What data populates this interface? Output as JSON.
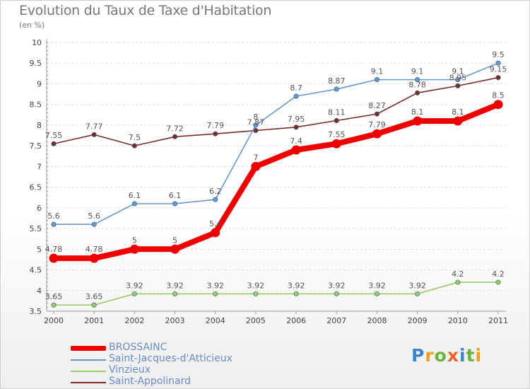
{
  "header": {
    "title": "Evolution du Taux de Taxe d'Habitation",
    "unit": "(en %)"
  },
  "chart_data": {
    "type": "line",
    "title": "Evolution du Taux de Taxe d'Habitation",
    "ylabel": "(en %)",
    "xlabel": "",
    "ylim": [
      3.5,
      10
    ],
    "y_ticks": [
      "3.5",
      "4",
      "4.5",
      "5",
      "5.5",
      "6",
      "6.5",
      "7",
      "7.5",
      "8",
      "8.5",
      "9",
      "9.5",
      "10"
    ],
    "categories": [
      "2000",
      "2001",
      "2002",
      "2003",
      "2004",
      "2005",
      "2006",
      "2007",
      "2008",
      "2009",
      "2010",
      "2011"
    ],
    "grid": "horizontal dashed",
    "legend": "bottom-left",
    "series": [
      {
        "name": "BROSSAINC",
        "color": "#ee0000",
        "values": [
          4.78,
          4.78,
          5,
          5,
          5.4,
          7,
          7.4,
          7.55,
          7.79,
          8.1,
          8.1,
          8.5
        ],
        "labels": [
          "4.78",
          "4.78",
          "5",
          "5",
          "5.4",
          "7",
          "7.4",
          "7.55",
          "7.79",
          "8.1",
          "8.1",
          "8.5"
        ]
      },
      {
        "name": "Saint-Jacques-d'Atticieux",
        "color": "#6699cc",
        "values": [
          5.6,
          5.6,
          6.1,
          6.1,
          6.2,
          8,
          8.7,
          8.87,
          9.1,
          9.1,
          9.1,
          9.5
        ],
        "labels": [
          "5.6",
          "5.6",
          "6.1",
          "6.1",
          "6.2",
          "8",
          "8.7",
          "8.87",
          "9.1",
          "9.1",
          "9.1",
          "9.5"
        ]
      },
      {
        "name": "Vinzieux",
        "color": "#99cc66",
        "values": [
          3.65,
          3.65,
          3.92,
          3.92,
          3.92,
          3.92,
          3.92,
          3.92,
          3.92,
          3.92,
          4.2,
          4.2
        ],
        "labels": [
          "3.65",
          "3.65",
          "3.92",
          "3.92",
          "3.92",
          "3.92",
          "3.92",
          "3.92",
          "3.92",
          "3.92",
          "4.2",
          "4.2"
        ]
      },
      {
        "name": "Saint-Appolinard",
        "color": "#7a2b2b",
        "values": [
          7.55,
          7.77,
          7.5,
          7.72,
          7.79,
          7.87,
          7.95,
          8.11,
          8.27,
          8.78,
          8.95,
          9.15
        ],
        "labels": [
          "7.55",
          "7.77",
          "7.5",
          "7.72",
          "7.79",
          "7.87",
          "7.95",
          "8.11",
          "8.27",
          "8.78",
          "8.95",
          "9.15"
        ]
      }
    ]
  },
  "logo": {
    "text": "Proxiti",
    "letters": [
      "P",
      "r",
      "o",
      "x",
      "i",
      "t",
      "i"
    ]
  }
}
